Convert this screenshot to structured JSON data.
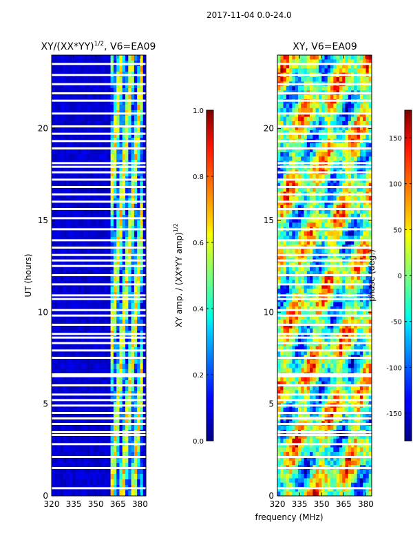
{
  "figure_title": "2017-11-04 0.0-24.0",
  "chart_data": [
    {
      "type": "heatmap",
      "title": "XY/(XX*YY)^1/2, V6=EA09",
      "title_main": "XY/(XX*YY)",
      "title_exp": "1/2",
      "title_suffix": ", V6=EA09",
      "xlabel": "frequency (MHz)",
      "ylabel": "UT (hours)",
      "xlim": [
        320,
        384
      ],
      "ylim": [
        0,
        24
      ],
      "xticks": [
        "320",
        "335",
        "350",
        "365",
        "380"
      ],
      "yticks": [
        "0",
        "5",
        "10",
        "15",
        "20"
      ],
      "colorbar": {
        "label": "XY amp. / (XX*YY amp)^1/2",
        "label_main": "XY amp. / (XX*YY amp)",
        "label_exp": "1/2",
        "range": [
          0.0,
          1.0
        ],
        "ticks": [
          "0.0",
          "0.2",
          "0.4",
          "0.6",
          "0.8",
          "1.0"
        ],
        "colormap": "jet"
      },
      "description_values": {
        "low_band_amplitude": 0.05,
        "high_band_amplitude_range": [
          0.2,
          0.8
        ],
        "high_band_start_mhz": 361
      }
    },
    {
      "type": "heatmap",
      "title": "XY, V6=EA09",
      "xlabel": "frequency (MHz)",
      "ylabel": "",
      "xlim": [
        320,
        384
      ],
      "ylim": [
        0,
        24
      ],
      "xticks": [
        "320",
        "335",
        "350",
        "365",
        "380"
      ],
      "yticks": [
        "0",
        "5",
        "10",
        "15",
        "20"
      ],
      "colorbar": {
        "label": "phase (deg.)",
        "range": [
          -180,
          180
        ],
        "ticks": [
          "-150",
          "-100",
          "-50",
          "0",
          "50",
          "100",
          "150"
        ],
        "colormap": "jet"
      }
    }
  ],
  "flagged_ut_hours": [
    0.4,
    1.5,
    2.1,
    2.8,
    3.3,
    3.45,
    3.9,
    4.2,
    4.5,
    4.9,
    5.2,
    5.5,
    6.0,
    6.5,
    6.6,
    7.5,
    7.9,
    8.3,
    8.6,
    8.8,
    9.3,
    9.8,
    10.1,
    10.7,
    10.9,
    11.5,
    12.0,
    12.5,
    12.8,
    13.1,
    13.5,
    13.9,
    14.5,
    15.1,
    15.6,
    16.0,
    16.4,
    16.8,
    17.2,
    17.6,
    17.9,
    18.1,
    18.9,
    19.3,
    19.7,
    20.1,
    20.8,
    21.5,
    21.9,
    22.4,
    22.9,
    23.5
  ]
}
